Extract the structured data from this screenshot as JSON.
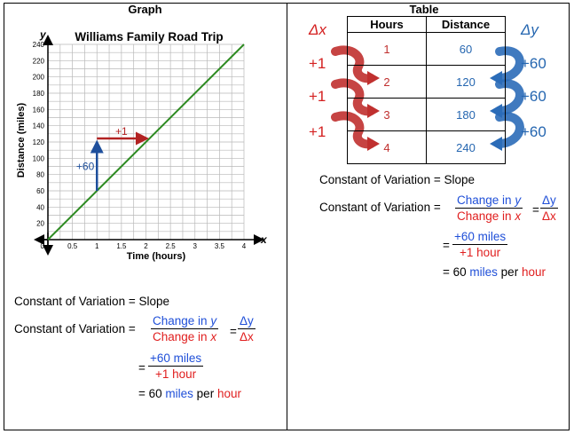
{
  "headers": {
    "graph": "Graph",
    "table": "Table"
  },
  "graph": {
    "title": "Williams Family Road Trip",
    "x_axis_letter": "x",
    "y_axis_letter": "y",
    "xlabel": "Time (hours)",
    "ylabel": "Distance (miles)",
    "rise_label": "+60",
    "run_label": "+1",
    "colors": {
      "line": "#2e8b22",
      "rise": "#1e4f9c",
      "run": "#b22222"
    }
  },
  "chart_data": {
    "type": "line",
    "title": "Williams Family Road Trip",
    "xlabel": "Time (hours)",
    "ylabel": "Distance (miles)",
    "xlim": [
      0,
      4
    ],
    "ylim": [
      0,
      240
    ],
    "x_ticks": [
      "0.5",
      "1",
      "1.5",
      "2",
      "2.5",
      "3",
      "3.5",
      "4"
    ],
    "y_ticks": [
      "20",
      "40",
      "60",
      "80",
      "100",
      "120",
      "140",
      "160",
      "180",
      "200",
      "220",
      "240"
    ],
    "origin_label": "0",
    "grid": true,
    "series": [
      {
        "x": [
          0,
          4
        ],
        "y": [
          0,
          240
        ]
      }
    ],
    "annotations": [
      {
        "text": "+60",
        "from": [
          1,
          60
        ],
        "to": [
          1,
          120
        ]
      },
      {
        "text": "+1",
        "from": [
          1,
          120
        ],
        "to": [
          2,
          120
        ]
      }
    ]
  },
  "table": {
    "col_hours": "Hours",
    "col_distance": "Distance",
    "rows": [
      {
        "hours": "1",
        "distance": "60"
      },
      {
        "hours": "2",
        "distance": "120"
      },
      {
        "hours": "3",
        "distance": "180"
      },
      {
        "hours": "4",
        "distance": "240"
      }
    ],
    "delta_x": "Δx",
    "delta_y": "Δy",
    "x_steps": [
      "+1",
      "+1",
      "+1"
    ],
    "y_steps": [
      "+60",
      "+60",
      "+60"
    ]
  },
  "equations": {
    "line1": "Constant of Variation = Slope",
    "line2_prefix": "Constant of Variation =",
    "change_in": "Change in ",
    "var_y": "y",
    "var_x": "x",
    "dy": "Δy",
    "dx": "Δx",
    "eq": "=",
    "num": "+60 miles",
    "den": "+1 hour",
    "result_prefix": "= 60 ",
    "miles": "miles",
    "per": " per ",
    "hour": "hour"
  }
}
